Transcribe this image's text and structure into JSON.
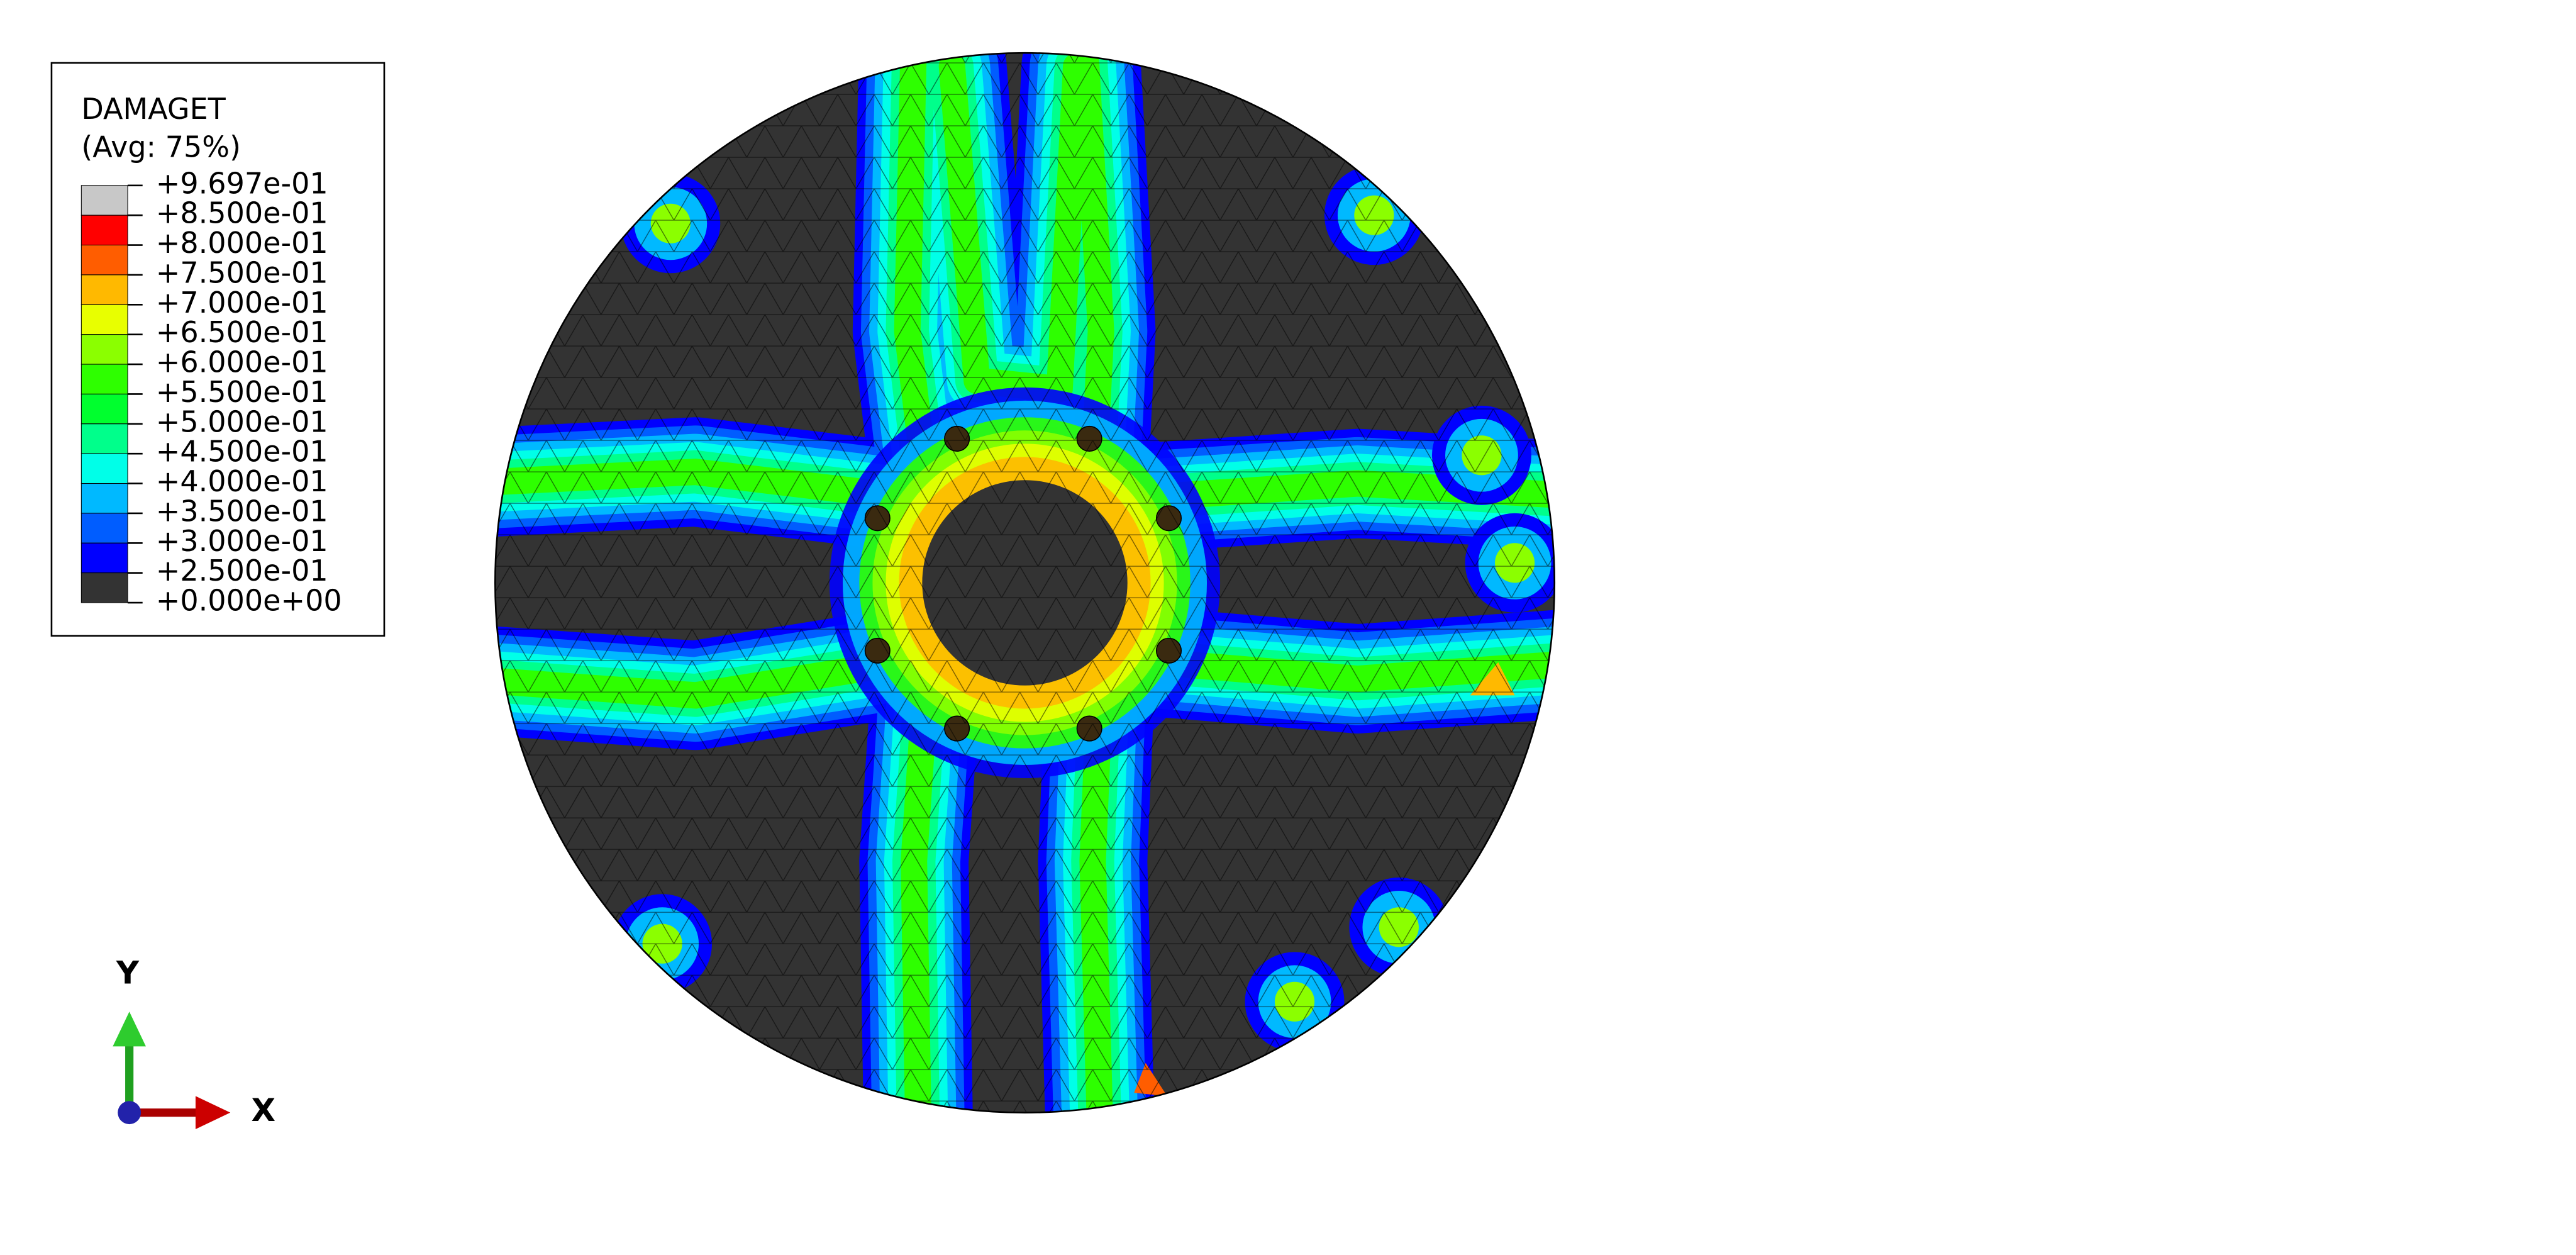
{
  "legend": {
    "title": "DAMAGET",
    "subtitle": "(Avg: 75%)",
    "labels": [
      "+9.697e-01",
      "+8.500e-01",
      "+8.000e-01",
      "+7.500e-01",
      "+7.000e-01",
      "+6.500e-01",
      "+6.000e-01",
      "+5.500e-01",
      "+5.000e-01",
      "+4.500e-01",
      "+4.000e-01",
      "+3.500e-01",
      "+3.000e-01",
      "+2.500e-01",
      "+0.000e+00"
    ]
  },
  "triad": {
    "y_label": "Y",
    "x_label": "X"
  }
}
